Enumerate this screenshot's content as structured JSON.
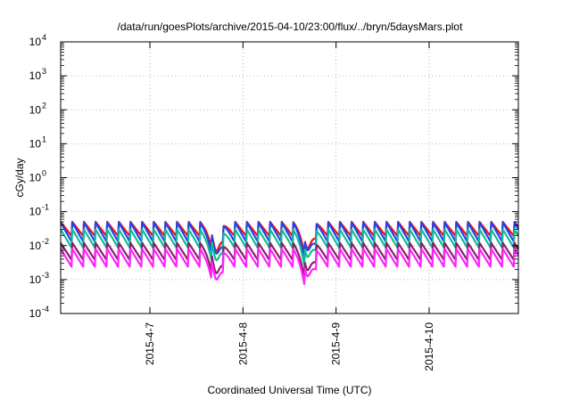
{
  "chart_data": {
    "type": "line",
    "title": "/data/run/goesPlots/archive/2015-04-10/23:00/flux/../bryn/5daysMars.plot",
    "xlabel": "Coordinated Universal Time (UTC)",
    "ylabel": "cGy/day",
    "yscale": "log",
    "ylim": [
      0.0001,
      10000
    ],
    "xlim": [
      "2015-04-06 01:00",
      "2015-04-10 23:00"
    ],
    "grid": true,
    "y_ticks": [
      {
        "base": "10",
        "exp": "-4",
        "value": 0.0001
      },
      {
        "base": "10",
        "exp": "-3",
        "value": 0.001
      },
      {
        "base": "10",
        "exp": "-2",
        "value": 0.01
      },
      {
        "base": "10",
        "exp": "-1",
        "value": 0.1
      },
      {
        "base": "10",
        "exp": "0",
        "value": 1
      },
      {
        "base": "10",
        "exp": "1",
        "value": 10
      },
      {
        "base": "10",
        "exp": "2",
        "value": 100
      },
      {
        "base": "10",
        "exp": "3",
        "value": 1000
      },
      {
        "base": "10",
        "exp": "4",
        "value": 10000
      }
    ],
    "x_ticks": [
      {
        "label": "2015-4-7",
        "value": "2015-04-07 00:00"
      },
      {
        "label": "2015-4-8",
        "value": "2015-04-08 00:00"
      },
      {
        "label": "2015-4-9",
        "value": "2015-04-09 00:00"
      },
      {
        "label": "2015-4-10",
        "value": "2015-04-10 00:00"
      }
    ],
    "cycle_hours": 3,
    "cycle_shape": "sawtooth: sharp rise at start of each cycle, decay until next cycle",
    "dips": [
      {
        "at": "2015-04-07 17:00",
        "note": "pronounced dip in all series"
      },
      {
        "at": "2015-04-08 16:30",
        "note": "pronounced dip in all series"
      }
    ],
    "series": [
      {
        "color": "#ee1111",
        "peak": 0.05,
        "trough": 0.018
      },
      {
        "color": "#2244ee",
        "peak": 0.048,
        "trough": 0.012
      },
      {
        "color": "#11bb99",
        "peak": 0.03,
        "trough": 0.008
      },
      {
        "color": "#882266",
        "peak": 0.012,
        "trough": 0.0035
      },
      {
        "color": "#ff22ff",
        "peak": 0.008,
        "trough": 0.0022
      }
    ]
  }
}
